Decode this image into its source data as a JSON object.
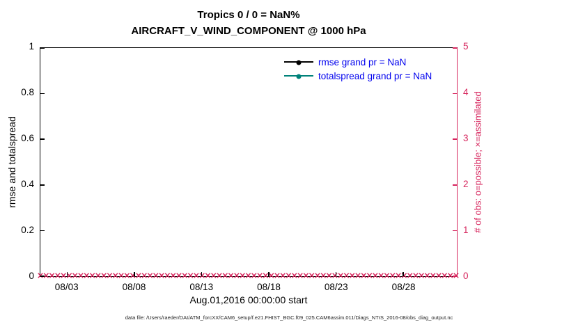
{
  "footer": "data file: /Users/raeder/DAI/ATM_forcXX/CAM6_setup/f.e21.FHIST_BGC.f09_025.CAM6assim.011/Diags_NTrS_2016-08/obs_diag_output.nc",
  "colors": {
    "axis": "#000000",
    "obs": "#d6245c",
    "legend_text": "#0000ee",
    "totalspread": "#00827a"
  },
  "chart_data": {
    "type": "line",
    "title": "Tropics 0 / 0 = NaN%",
    "subtitle": "AIRCRAFT_V_WIND_COMPONENT @ 1000 hPa",
    "x_axis": {
      "label": "Aug.01,2016 00:00:00 start",
      "tick_labels": [
        "08/03",
        "08/08",
        "08/13",
        "08/18",
        "08/23",
        "08/28"
      ],
      "tick_days": [
        3,
        8,
        13,
        18,
        23,
        28
      ],
      "range_days": [
        1,
        32
      ]
    },
    "y_left": {
      "label": "rmse and totalspread",
      "ticks": [
        0,
        0.2,
        0.4,
        0.6,
        0.8,
        1
      ],
      "range": [
        0,
        1
      ]
    },
    "y_right": {
      "label": "# of obs: o=possible; ×=assimilated",
      "ticks": [
        0,
        1,
        2,
        3,
        4,
        5
      ],
      "range": [
        0,
        5
      ]
    },
    "grid": false,
    "legend_position": "upper-right-inside",
    "series": [
      {
        "name": "rmse",
        "legend": "rmse grand pr = NaN",
        "color": "#000000",
        "marker": "filled-circle",
        "values": "all NaN (no curve plotted)"
      },
      {
        "name": "totalspread",
        "legend": "totalspread grand pr = NaN",
        "color": "#00827a",
        "marker": "filled-circle",
        "values": "all NaN (no curve plotted)"
      },
      {
        "name": "assimilated-obs",
        "legend": null,
        "color": "#d6245c",
        "marker": "x",
        "y_constant": 0,
        "note": "x markers at y=0 across the entire date range (0 obs assimilated)"
      }
    ]
  }
}
